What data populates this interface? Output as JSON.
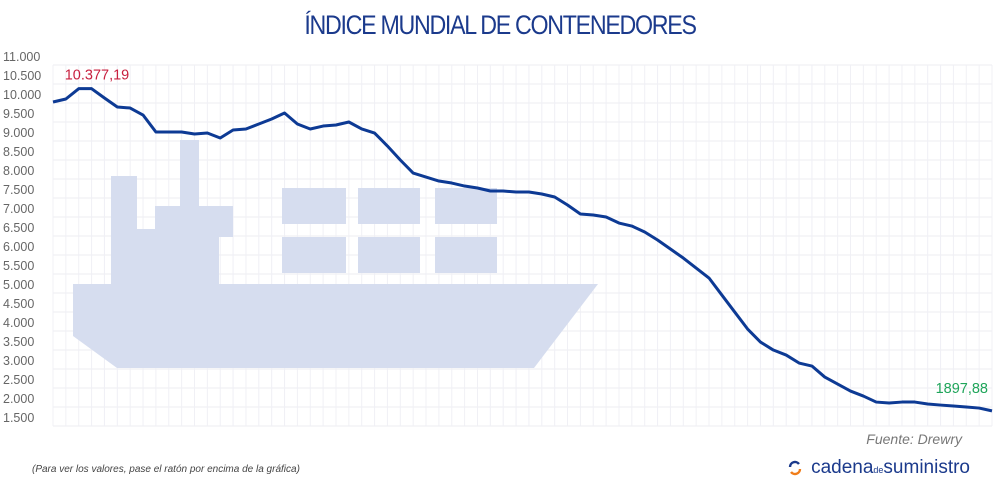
{
  "chart_data": {
    "type": "line",
    "title": "ÍNDICE MUNDIAL DE CONTENEDORES",
    "xlabel": "",
    "ylabel": "",
    "ylim": [
      1500,
      11000
    ],
    "yticks": [
      "11.000",
      "10.500",
      "10.000",
      "9.500",
      "9.000",
      "8.500",
      "8.000",
      "7.500",
      "7.000",
      "6.500",
      "6.000",
      "5.500",
      "5.000",
      "4.500",
      "4.000",
      "3.500",
      "3.000",
      "2.500",
      "2.000",
      "1.500"
    ],
    "ytick_values": [
      11000,
      10500,
      10000,
      9500,
      9000,
      8500,
      8000,
      7500,
      7000,
      6500,
      6000,
      5500,
      5000,
      4500,
      4000,
      3500,
      3000,
      2500,
      2000,
      1500
    ],
    "grid": true,
    "series": [
      {
        "name": "Índice mundial de contenedores",
        "color": "#0d3a94",
        "values": [
          10026,
          10105,
          10377.19,
          10377.19,
          10131,
          9895,
          9868,
          9684,
          9237,
          9237,
          9237,
          9184,
          9210,
          9079,
          9289,
          9316,
          9447,
          9579,
          9737,
          9447,
          9316,
          9394,
          9421,
          9500,
          9316,
          9210,
          8868,
          8500,
          8157,
          8052,
          7947,
          7894,
          7815,
          7763,
          7684,
          7684,
          7657,
          7657,
          7605,
          7526,
          7315,
          7078,
          7052,
          6999,
          6841,
          6762,
          6605,
          6394,
          6157,
          5920,
          5657,
          5394,
          4946,
          4499,
          4052,
          3709,
          3499,
          3367,
          3157,
          3078,
          2788,
          2604,
          2420,
          2288,
          2130,
          2104,
          2130,
          2130,
          2078,
          2051,
          2025,
          1999,
          1972,
          1897.88
        ]
      }
    ],
    "annotations": [
      {
        "text": "10.377,19",
        "point_index": 2,
        "color": "#c8203f"
      },
      {
        "text": "1897,88",
        "point_index": 73,
        "color": "#1fa55a"
      }
    ]
  },
  "source": "Fuente: Drewry",
  "hint": "(Para ver los valores, pase el ratón por encima de la gráfica)",
  "logo": {
    "part1": "cadena",
    "part2": "de",
    "part3": "suministro"
  },
  "colors": {
    "title": "#1b3a8c",
    "ship": "#d6ddef",
    "grid": "#ececf2"
  }
}
